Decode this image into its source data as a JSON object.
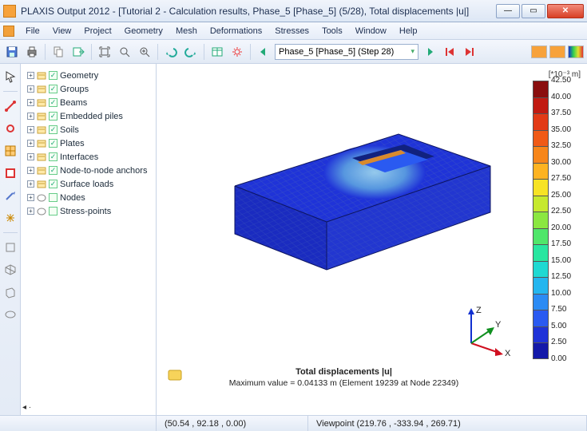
{
  "window": {
    "title": "PLAXIS Output 2012 - [Tutorial 2 - Calculation results, Phase_5 [Phase_5] (5/28), Total displacements |u|]"
  },
  "menu": [
    "File",
    "View",
    "Project",
    "Geometry",
    "Mesh",
    "Deformations",
    "Stresses",
    "Tools",
    "Window",
    "Help"
  ],
  "toolbar": {
    "phase_selected": "Phase_5 [Phase_5] (Step 28)"
  },
  "tree": [
    {
      "label": "Geometry",
      "checked": true
    },
    {
      "label": "Groups",
      "checked": true
    },
    {
      "label": "Beams",
      "checked": true
    },
    {
      "label": "Embedded piles",
      "checked": true
    },
    {
      "label": "Soils",
      "checked": true
    },
    {
      "label": "Plates",
      "checked": true
    },
    {
      "label": "Interfaces",
      "checked": true
    },
    {
      "label": "Node-to-node anchors",
      "checked": true
    },
    {
      "label": "Surface loads",
      "checked": true
    },
    {
      "label": "Nodes",
      "checked": false
    },
    {
      "label": "Stress-points",
      "checked": false
    }
  ],
  "legend": {
    "unit_label": "[*10⁻³ m]",
    "max": 42.5,
    "step": 2.5,
    "colors": [
      "#8a0f0f",
      "#c11b12",
      "#e23a16",
      "#f05a16",
      "#f7861a",
      "#fdb321",
      "#f7e325",
      "#c6e92e",
      "#8be741",
      "#4fe66a",
      "#28e6a0",
      "#1fd9d2",
      "#24b6ef",
      "#2b8bf4",
      "#2a5af1",
      "#1f33d8",
      "#1419a9"
    ]
  },
  "model": {
    "mesh_color": "#1f33d8",
    "wire_color": "#526fae",
    "halo_color": "#6bb8e0",
    "slab_color": "#d98a2d",
    "floor_color": "#2a5af1"
  },
  "caption": {
    "title": "Total displacements |u|",
    "subtitle": "Maximum value = 0.04133 m (Element 19239 at Node 22349)"
  },
  "status": {
    "coords": "(50.54 , 92.18 , 0.00)",
    "viewpoint": "Viewpoint (219.76 , -333.94 , 269.71)"
  },
  "axes": {
    "x": "X",
    "y": "Y",
    "z": "Z"
  }
}
